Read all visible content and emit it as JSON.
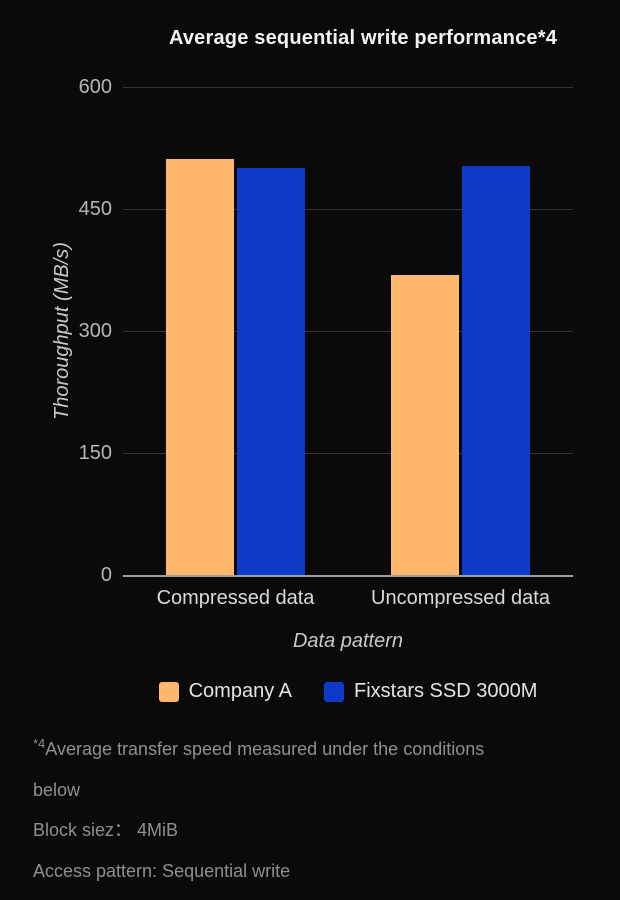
{
  "chart_data": {
    "type": "bar",
    "title": "Average sequential write performance*4",
    "categories": [
      "Compressed data",
      "Uncompressed data"
    ],
    "series": [
      {
        "name": "Company A",
        "color": "#ffb66d",
        "values": [
          512,
          369
        ]
      },
      {
        "name": "Fixstars SSD 3000M",
        "color": "#0d3ac9",
        "values": [
          500,
          503
        ]
      }
    ],
    "xlabel": "Data pattern",
    "ylabel": "Thoroughput (MB/s)",
    "ylim": [
      0,
      600
    ],
    "yticks": [
      0,
      150,
      300,
      450,
      600
    ],
    "grid": true,
    "legend_position": "bottom",
    "background": "#0a0a0a"
  },
  "footnotes": {
    "sup": "*4",
    "line1": "Average transfer speed measured under the conditions",
    "line2": "below",
    "line3": "Block siez： 4MiB",
    "line4": "Access pattern: Sequential write"
  }
}
